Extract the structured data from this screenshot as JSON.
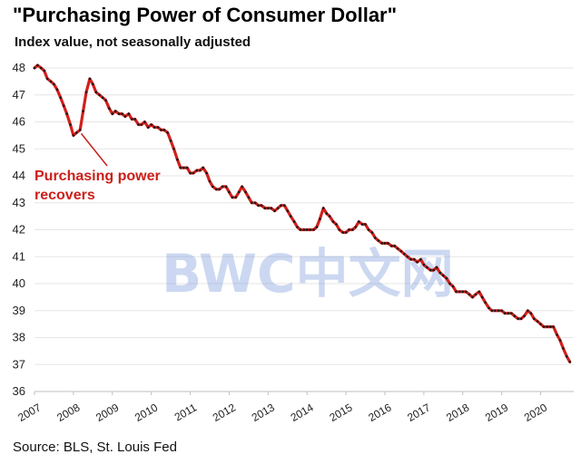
{
  "title": "\"Purchasing  Power of Consumer Dollar\"",
  "subtitle": "Index value, not seasonally adjusted",
  "source": "Source: BLS, St. Louis Fed",
  "watermark": "BWC中文网",
  "colors": {
    "line": "#d21f1b",
    "marker": "#1a1a1a",
    "annotation": "#cc1f1a",
    "watermark": "#6d8fd6",
    "grid": "#e6e6e6"
  },
  "chart_data": {
    "type": "line",
    "title": "\"Purchasing  Power of Consumer Dollar\"",
    "subtitle": "Index value, not seasonally adjusted",
    "ylim": [
      36,
      48
    ],
    "xlim": [
      2007.0,
      2020.85
    ],
    "yticks": [
      "36",
      "37",
      "38",
      "39",
      "40",
      "41",
      "42",
      "43",
      "44",
      "45",
      "46",
      "47",
      "48"
    ],
    "xticks": [
      "2007",
      "2008",
      "2009",
      "2010",
      "2011",
      "2012",
      "2013",
      "2014",
      "2015",
      "2016",
      "2017",
      "2018",
      "2019",
      "2020"
    ],
    "grid": "horizontal",
    "annotation": {
      "lines": [
        "Purchasing power",
        "recovers"
      ],
      "points_to": [
        2008.2,
        45.7
      ]
    },
    "series": [
      {
        "x": [
          2007.0,
          2007.08,
          2007.17,
          2007.25,
          2007.33,
          2007.42,
          2007.5,
          2007.58,
          2007.67,
          2007.75,
          2007.83,
          2007.92,
          2008.0,
          2008.08,
          2008.17,
          2008.25,
          2008.33,
          2008.42,
          2008.5,
          2008.58,
          2008.67,
          2008.75,
          2008.83,
          2008.92,
          2009.0,
          2009.08,
          2009.17,
          2009.25,
          2009.33,
          2009.42,
          2009.5,
          2009.58,
          2009.67,
          2009.75,
          2009.83,
          2009.92,
          2010.0,
          2010.08,
          2010.17,
          2010.25,
          2010.33,
          2010.42,
          2010.5,
          2010.58,
          2010.67,
          2010.75,
          2010.83,
          2010.92,
          2011.0,
          2011.08,
          2011.17,
          2011.25,
          2011.33,
          2011.42,
          2011.5,
          2011.58,
          2011.67,
          2011.75,
          2011.83,
          2011.92,
          2012.0,
          2012.08,
          2012.17,
          2012.25,
          2012.33,
          2012.42,
          2012.5,
          2012.58,
          2012.67,
          2012.75,
          2012.83,
          2012.92,
          2013.0,
          2013.08,
          2013.17,
          2013.25,
          2013.33,
          2013.42,
          2013.5,
          2013.58,
          2013.67,
          2013.75,
          2013.83,
          2013.92,
          2014.0,
          2014.08,
          2014.17,
          2014.25,
          2014.33,
          2014.42,
          2014.5,
          2014.58,
          2014.67,
          2014.75,
          2014.83,
          2014.92,
          2015.0,
          2015.08,
          2015.17,
          2015.25,
          2015.33,
          2015.42,
          2015.5,
          2015.58,
          2015.67,
          2015.75,
          2015.83,
          2015.92,
          2016.0,
          2016.08,
          2016.17,
          2016.25,
          2016.33,
          2016.42,
          2016.5,
          2016.58,
          2016.67,
          2016.75,
          2016.83,
          2016.92,
          2017.0,
          2017.08,
          2017.17,
          2017.25,
          2017.33,
          2017.42,
          2017.5,
          2017.58,
          2017.67,
          2017.75,
          2017.83,
          2017.92,
          2018.0,
          2018.08,
          2018.17,
          2018.25,
          2018.33,
          2018.42,
          2018.5,
          2018.58,
          2018.67,
          2018.75,
          2018.83,
          2018.92,
          2019.0,
          2019.08,
          2019.17,
          2019.25,
          2019.33,
          2019.42,
          2019.5,
          2019.58,
          2019.67,
          2019.75,
          2019.83,
          2019.92,
          2020.0,
          2020.08,
          2020.17,
          2020.25,
          2020.33,
          2020.42,
          2020.5,
          2020.58,
          2020.67,
          2020.75
        ],
        "y": [
          48.0,
          48.1,
          48.0,
          47.9,
          47.6,
          47.5,
          47.4,
          47.2,
          46.9,
          46.6,
          46.3,
          45.9,
          45.5,
          45.6,
          45.7,
          46.4,
          47.1,
          47.6,
          47.4,
          47.1,
          47.0,
          46.9,
          46.8,
          46.5,
          46.3,
          46.4,
          46.3,
          46.3,
          46.2,
          46.3,
          46.1,
          46.1,
          45.9,
          45.9,
          46.0,
          45.8,
          45.9,
          45.8,
          45.8,
          45.7,
          45.7,
          45.6,
          45.3,
          45.0,
          44.6,
          44.3,
          44.3,
          44.3,
          44.1,
          44.1,
          44.2,
          44.2,
          44.3,
          44.1,
          43.8,
          43.6,
          43.5,
          43.5,
          43.6,
          43.6,
          43.4,
          43.2,
          43.2,
          43.4,
          43.6,
          43.4,
          43.2,
          43.0,
          43.0,
          42.9,
          42.9,
          42.8,
          42.8,
          42.8,
          42.7,
          42.8,
          42.9,
          42.9,
          42.7,
          42.5,
          42.3,
          42.1,
          42.0,
          42.0,
          42.0,
          42.0,
          42.0,
          42.1,
          42.4,
          42.8,
          42.6,
          42.5,
          42.3,
          42.2,
          42.0,
          41.9,
          41.9,
          42.0,
          42.0,
          42.1,
          42.3,
          42.2,
          42.2,
          42.0,
          41.9,
          41.7,
          41.6,
          41.5,
          41.5,
          41.5,
          41.4,
          41.4,
          41.3,
          41.2,
          41.1,
          41.0,
          40.9,
          40.9,
          40.8,
          40.9,
          40.7,
          40.6,
          40.5,
          40.5,
          40.6,
          40.4,
          40.3,
          40.2,
          40.0,
          39.9,
          39.7,
          39.7,
          39.7,
          39.7,
          39.6,
          39.5,
          39.6,
          39.7,
          39.5,
          39.3,
          39.1,
          39.0,
          39.0,
          39.0,
          39.0,
          38.9,
          38.9,
          38.9,
          38.8,
          38.7,
          38.7,
          38.8,
          39.0,
          38.9,
          38.7,
          38.6,
          38.5,
          38.4,
          38.4,
          38.4,
          38.4,
          38.1,
          37.9,
          37.6,
          37.3,
          37.1
        ]
      }
    ]
  }
}
